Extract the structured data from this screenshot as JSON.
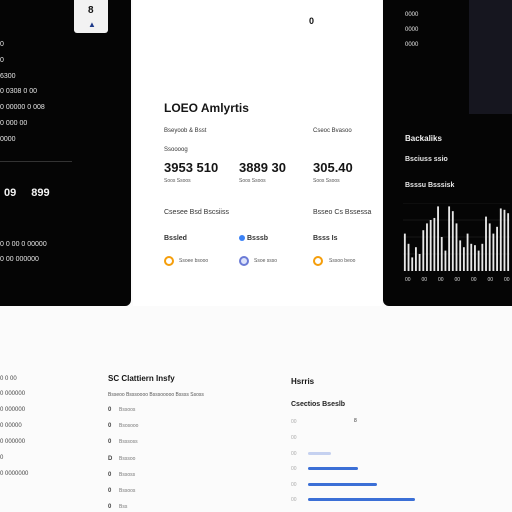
{
  "left_panel": {
    "tab_glyph": "8",
    "items": [
      "0",
      "0",
      "6300",
      "0 0308 0 00",
      "0 00000 0 008",
      "0 000 00",
      "0000"
    ],
    "nums": "09 899",
    "bottom_items": [
      "0 0 00 0 00000",
      "0 00 000000"
    ]
  },
  "center": {
    "icon": "0",
    "title": "LOEO Amlyrtis",
    "label_left": "Bseyoob & Bsst",
    "label_right": "Cseoc Bvasoo",
    "label_sub": "Ssoooog",
    "stats": [
      {
        "value": "3953 510",
        "sub": "Soos Ssoos"
      },
      {
        "value": "3889 30",
        "sub": "Soos Ssoos"
      },
      {
        "value": "305.40",
        "sub": "Soos Ssoos"
      }
    ],
    "section_left": "Csesee Bsd Bscsiiss",
    "section_right": "Bsseo Cs Bssessa",
    "labels": [
      "Bssled",
      "Bsssb",
      "Bsss Is"
    ],
    "footers": [
      "Ssoee bsooo",
      "Ssoe ssso",
      "Sssoo beoo"
    ]
  },
  "right_panel": {
    "top_items": [
      "0000",
      "0000",
      "0000"
    ],
    "title1": "Backaliks",
    "title2": "Bsciuss ssio",
    "title3": "Bsssu Bsssisk",
    "chart_x_labels": [
      "00",
      "00",
      "00",
      "00",
      "00",
      "00",
      "00"
    ]
  },
  "chart_data": {
    "type": "bar",
    "values": [
      55,
      40,
      20,
      35,
      25,
      60,
      70,
      75,
      78,
      95,
      50,
      30,
      95,
      88,
      70,
      45,
      35,
      55,
      40,
      38,
      30,
      40,
      80,
      70,
      55,
      65,
      92,
      90,
      85
    ]
  },
  "bottom_left": {
    "items": [
      "0 0 00",
      "0 000000",
      "0 000000",
      "0 00000",
      "0 000000",
      "0",
      "0 0000000"
    ]
  },
  "bottom_center": {
    "title": "SC Clattiern Insfy",
    "subtitle": "Bsseoo Bsssoooo Bsssooooo Bssss Ssoss",
    "rows": [
      {
        "icon": "0",
        "text": "Bssoos"
      },
      {
        "icon": "0",
        "text": "Bsosooo"
      },
      {
        "icon": "0",
        "text": "Bsssoss"
      },
      {
        "icon": "D",
        "text": "Bsssoo"
      },
      {
        "icon": "0",
        "text": "Bssoss"
      },
      {
        "icon": "0",
        "text": "Bssoos"
      },
      {
        "icon": "0",
        "text": "Bss"
      }
    ]
  },
  "bottom_right": {
    "title": "Hsrris",
    "subtitle": "Csectios Bseslb",
    "num": "8",
    "dashes": [
      "00",
      "00",
      "00",
      "00",
      "00",
      "00"
    ],
    "progress": [
      0.18,
      0.4,
      0.55,
      0.85
    ]
  }
}
